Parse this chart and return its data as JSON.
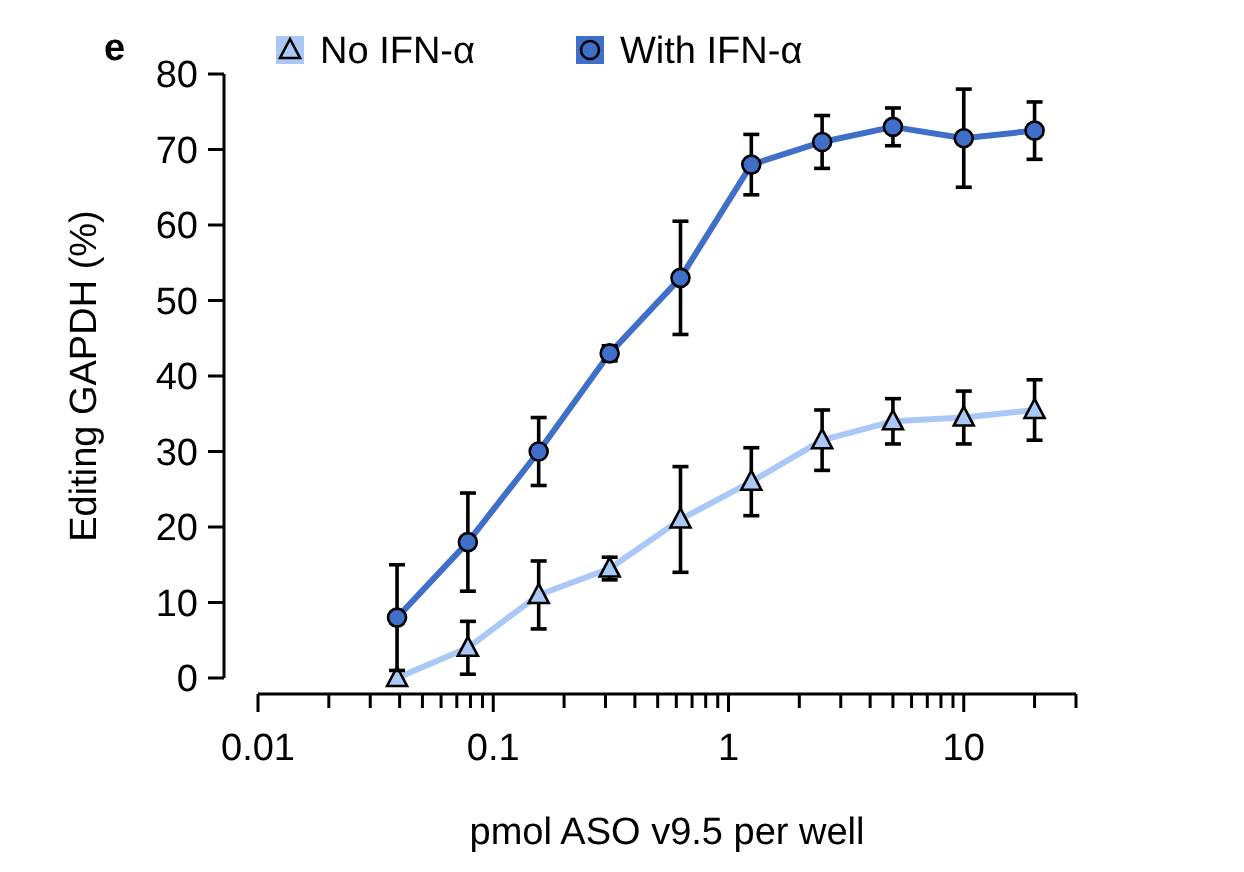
{
  "chart_data": {
    "type": "line",
    "title": "e",
    "xlabel": "pmol ASO v9.5 per well",
    "ylabel": "Editing GAPDH (%)",
    "log": "x",
    "xlim": [
      0.01,
      30
    ],
    "ylim": [
      0,
      80
    ],
    "yticks": [
      0,
      10,
      20,
      30,
      40,
      50,
      60,
      70,
      80
    ],
    "xticks": [
      0.01,
      {
        "value": 0.02,
        "label": null
      },
      {
        "value": 0.03,
        "label": null
      },
      {
        "value": 0.04,
        "label": null
      },
      {
        "value": 0.05,
        "label": null
      },
      {
        "value": 0.06,
        "label": null
      },
      {
        "value": 0.07,
        "label": null
      },
      {
        "value": 0.08,
        "label": null
      },
      {
        "value": 0.09,
        "label": null
      },
      0.1,
      {
        "value": 0.2,
        "label": null
      },
      {
        "value": 0.3,
        "label": null
      },
      {
        "value": 0.4,
        "label": null
      },
      {
        "value": 0.5,
        "label": null
      },
      {
        "value": 0.6,
        "label": null
      },
      {
        "value": 0.7,
        "label": null
      },
      {
        "value": 0.8,
        "label": null
      },
      {
        "value": 0.9,
        "label": null
      },
      1,
      {
        "value": 2,
        "label": null
      },
      {
        "value": 3,
        "label": null
      },
      {
        "value": 4,
        "label": null
      },
      {
        "value": 5,
        "label": null
      },
      {
        "value": 6,
        "label": null
      },
      {
        "value": 7,
        "label": null
      },
      {
        "value": 8,
        "label": null
      },
      {
        "value": 9,
        "label": null
      },
      10,
      {
        "value": 20,
        "label": null
      },
      {
        "value": 30,
        "label": null
      }
    ],
    "x": [
      0.039,
      0.078,
      0.156,
      0.3125,
      0.625,
      1.25,
      2.5,
      5,
      10,
      20
    ],
    "grid": false,
    "legend": "top left",
    "series": [
      {
        "name": "No IFN-α",
        "color": "#a9c8f5",
        "marker": "triangle",
        "values": [
          0,
          4,
          11,
          14.5,
          21,
          26,
          31.5,
          34,
          34.5,
          35.5
        ],
        "errors": [
          null,
          3.5,
          4.5,
          1.5,
          7,
          4.5,
          4,
          3,
          3.5,
          4
        ]
      },
      {
        "name": "With IFN-α",
        "color": "#3f6fc8",
        "marker": "circle",
        "values": [
          8,
          18,
          30,
          43,
          53,
          68,
          71,
          73,
          71.5,
          72.5
        ],
        "errors": [
          7,
          6.5,
          4.5,
          1,
          7.5,
          4,
          3.5,
          2.5,
          6.5,
          3.8
        ]
      }
    ]
  }
}
